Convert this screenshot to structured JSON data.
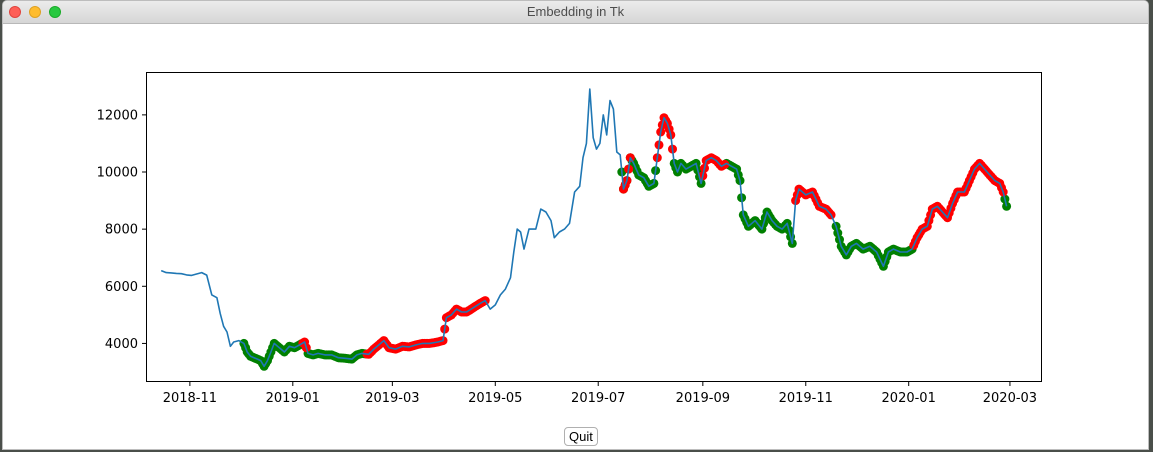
{
  "window": {
    "title": "Embedding in Tk"
  },
  "controls": {
    "quit_label": "Quit"
  },
  "chart_data": {
    "type": "line",
    "title": "",
    "xlabel": "",
    "ylabel": "",
    "xlim": [
      "2018-10-06",
      "2020-03-20"
    ],
    "ylim": [
      2650,
      13500
    ],
    "x_ticks": [
      "2018-11",
      "2019-01",
      "2019-03",
      "2019-05",
      "2019-07",
      "2019-09",
      "2019-11",
      "2020-01",
      "2020-03"
    ],
    "x_tick_dates": [
      "2018-11-01",
      "2019-01-01",
      "2019-03-01",
      "2019-05-01",
      "2019-07-01",
      "2019-09-01",
      "2019-11-01",
      "2020-01-01",
      "2020-03-01"
    ],
    "y_ticks": [
      4000,
      6000,
      8000,
      10000,
      12000
    ],
    "line_color": "#1f77b4",
    "series": [
      {
        "points": [
          [
            "2018-10-15",
            6550
          ],
          [
            "2018-10-18",
            6480
          ],
          [
            "2018-10-21",
            6470
          ],
          [
            "2018-10-24",
            6450
          ],
          [
            "2018-10-27",
            6440
          ],
          [
            "2018-10-30",
            6400
          ],
          [
            "2018-11-02",
            6380
          ],
          [
            "2018-11-05",
            6430
          ],
          [
            "2018-11-08",
            6480
          ],
          [
            "2018-11-11",
            6390
          ],
          [
            "2018-11-14",
            5700
          ],
          [
            "2018-11-17",
            5600
          ],
          [
            "2018-11-19",
            5050
          ],
          [
            "2018-11-21",
            4600
          ],
          [
            "2018-11-23",
            4400
          ],
          [
            "2018-11-25",
            3900
          ],
          [
            "2018-11-27",
            4050
          ],
          [
            "2018-11-30",
            4100
          ],
          [
            "2018-12-03",
            4000
          ],
          [
            "2018-12-05",
            3700
          ],
          [
            "2018-12-07",
            3550
          ],
          [
            "2018-12-09",
            3500
          ],
          [
            "2018-12-11",
            3450
          ],
          [
            "2018-12-13",
            3400
          ],
          [
            "2018-12-15",
            3200
          ],
          [
            "2018-12-17",
            3400
          ],
          [
            "2018-12-19",
            3700
          ],
          [
            "2018-12-21",
            4000
          ],
          [
            "2018-12-23",
            3900
          ],
          [
            "2018-12-25",
            3800
          ],
          [
            "2018-12-27",
            3700
          ],
          [
            "2018-12-30",
            3900
          ],
          [
            "2019-01-02",
            3850
          ],
          [
            "2019-01-05",
            3950
          ],
          [
            "2019-01-08",
            4050
          ],
          [
            "2019-01-10",
            3650
          ],
          [
            "2019-01-13",
            3600
          ],
          [
            "2019-01-16",
            3650
          ],
          [
            "2019-01-20",
            3600
          ],
          [
            "2019-01-24",
            3600
          ],
          [
            "2019-01-28",
            3500
          ],
          [
            "2019-02-01",
            3480
          ],
          [
            "2019-02-05",
            3450
          ],
          [
            "2019-02-08",
            3600
          ],
          [
            "2019-02-11",
            3650
          ],
          [
            "2019-02-15",
            3620
          ],
          [
            "2019-02-18",
            3800
          ],
          [
            "2019-02-21",
            3950
          ],
          [
            "2019-02-24",
            4100
          ],
          [
            "2019-02-27",
            3850
          ],
          [
            "2019-03-03",
            3800
          ],
          [
            "2019-03-07",
            3900
          ],
          [
            "2019-03-11",
            3880
          ],
          [
            "2019-03-15",
            3950
          ],
          [
            "2019-03-19",
            4000
          ],
          [
            "2019-03-23",
            4000
          ],
          [
            "2019-03-28",
            4050
          ],
          [
            "2019-03-31",
            4100
          ],
          [
            "2019-04-02",
            4900
          ],
          [
            "2019-04-05",
            5000
          ],
          [
            "2019-04-08",
            5200
          ],
          [
            "2019-04-11",
            5100
          ],
          [
            "2019-04-14",
            5100
          ],
          [
            "2019-04-18",
            5250
          ],
          [
            "2019-04-22",
            5400
          ],
          [
            "2019-04-25",
            5500
          ],
          [
            "2019-04-28",
            5200
          ],
          [
            "2019-05-01",
            5350
          ],
          [
            "2019-05-04",
            5700
          ],
          [
            "2019-05-07",
            5900
          ],
          [
            "2019-05-10",
            6300
          ],
          [
            "2019-05-12",
            7200
          ],
          [
            "2019-05-14",
            8000
          ],
          [
            "2019-05-16",
            7900
          ],
          [
            "2019-05-18",
            7300
          ],
          [
            "2019-05-21",
            8000
          ],
          [
            "2019-05-25",
            8000
          ],
          [
            "2019-05-28",
            8700
          ],
          [
            "2019-05-31",
            8600
          ],
          [
            "2019-06-03",
            8300
          ],
          [
            "2019-06-05",
            7700
          ],
          [
            "2019-06-08",
            7900
          ],
          [
            "2019-06-11",
            8000
          ],
          [
            "2019-06-14",
            8200
          ],
          [
            "2019-06-17",
            9300
          ],
          [
            "2019-06-20",
            9500
          ],
          [
            "2019-06-22",
            10500
          ],
          [
            "2019-06-24",
            11000
          ],
          [
            "2019-06-26",
            12900
          ],
          [
            "2019-06-28",
            11200
          ],
          [
            "2019-06-30",
            10800
          ],
          [
            "2019-07-02",
            11000
          ],
          [
            "2019-07-04",
            12000
          ],
          [
            "2019-07-06",
            11300
          ],
          [
            "2019-07-08",
            12500
          ],
          [
            "2019-07-10",
            12200
          ],
          [
            "2019-07-12",
            10700
          ],
          [
            "2019-07-14",
            10600
          ],
          [
            "2019-07-16",
            9400
          ],
          [
            "2019-07-18",
            9700
          ],
          [
            "2019-07-20",
            10500
          ],
          [
            "2019-07-22",
            10300
          ],
          [
            "2019-07-25",
            9900
          ],
          [
            "2019-07-28",
            9800
          ],
          [
            "2019-07-31",
            9500
          ],
          [
            "2019-08-03",
            9600
          ],
          [
            "2019-08-05",
            10500
          ],
          [
            "2019-08-07",
            11400
          ],
          [
            "2019-08-09",
            11900
          ],
          [
            "2019-08-11",
            11700
          ],
          [
            "2019-08-13",
            11300
          ],
          [
            "2019-08-15",
            10300
          ],
          [
            "2019-08-17",
            10000
          ],
          [
            "2019-08-19",
            10300
          ],
          [
            "2019-08-22",
            10100
          ],
          [
            "2019-08-25",
            10200
          ],
          [
            "2019-08-28",
            10300
          ],
          [
            "2019-08-31",
            9600
          ],
          [
            "2019-09-03",
            10400
          ],
          [
            "2019-09-06",
            10500
          ],
          [
            "2019-09-09",
            10400
          ],
          [
            "2019-09-12",
            10200
          ],
          [
            "2019-09-15",
            10300
          ],
          [
            "2019-09-18",
            10200
          ],
          [
            "2019-09-21",
            10100
          ],
          [
            "2019-09-23",
            9700
          ],
          [
            "2019-09-25",
            8500
          ],
          [
            "2019-09-28",
            8100
          ],
          [
            "2019-10-02",
            8300
          ],
          [
            "2019-10-06",
            8000
          ],
          [
            "2019-10-09",
            8600
          ],
          [
            "2019-10-12",
            8300
          ],
          [
            "2019-10-15",
            8100
          ],
          [
            "2019-10-18",
            8000
          ],
          [
            "2019-10-21",
            8200
          ],
          [
            "2019-10-24",
            7500
          ],
          [
            "2019-10-26",
            9000
          ],
          [
            "2019-10-28",
            9400
          ],
          [
            "2019-11-01",
            9200
          ],
          [
            "2019-11-05",
            9300
          ],
          [
            "2019-11-09",
            8800
          ],
          [
            "2019-11-13",
            8700
          ],
          [
            "2019-11-16",
            8500
          ],
          [
            "2019-11-19",
            8100
          ],
          [
            "2019-11-22",
            7400
          ],
          [
            "2019-11-25",
            7100
          ],
          [
            "2019-11-28",
            7400
          ],
          [
            "2019-12-01",
            7500
          ],
          [
            "2019-12-05",
            7300
          ],
          [
            "2019-12-09",
            7400
          ],
          [
            "2019-12-13",
            7200
          ],
          [
            "2019-12-17",
            6700
          ],
          [
            "2019-12-20",
            7200
          ],
          [
            "2019-12-23",
            7300
          ],
          [
            "2019-12-27",
            7200
          ],
          [
            "2019-12-31",
            7200
          ],
          [
            "2020-01-03",
            7300
          ],
          [
            "2020-01-06",
            7700
          ],
          [
            "2020-01-09",
            8000
          ],
          [
            "2020-01-12",
            8100
          ],
          [
            "2020-01-15",
            8700
          ],
          [
            "2020-01-18",
            8800
          ],
          [
            "2020-01-21",
            8600
          ],
          [
            "2020-01-24",
            8400
          ],
          [
            "2020-01-27",
            8900
          ],
          [
            "2020-01-30",
            9300
          ],
          [
            "2020-02-03",
            9300
          ],
          [
            "2020-02-06",
            9700
          ],
          [
            "2020-02-09",
            10100
          ],
          [
            "2020-02-12",
            10300
          ],
          [
            "2020-02-15",
            10100
          ],
          [
            "2020-02-18",
            9900
          ],
          [
            "2020-02-21",
            9700
          ],
          [
            "2020-02-24",
            9600
          ],
          [
            "2020-02-26",
            9300
          ],
          [
            "2020-02-28",
            8800
          ]
        ]
      }
    ],
    "marker_groups": [
      {
        "color": "#008000",
        "ranges": [
          [
            "2018-12-03",
            "2019-01-06"
          ],
          [
            "2019-01-10",
            "2019-02-13"
          ],
          [
            "2019-07-15",
            "2019-08-04"
          ],
          [
            "2019-08-15",
            "2019-08-31"
          ],
          [
            "2019-09-15",
            "2019-10-24"
          ],
          [
            "2019-11-19",
            "2020-01-03"
          ],
          [
            "2020-02-27",
            "2020-02-28"
          ]
        ]
      },
      {
        "color": "#ff0000",
        "ranges": [
          [
            "2019-01-07",
            "2019-01-09"
          ],
          [
            "2019-02-14",
            "2019-03-31"
          ],
          [
            "2019-04-01",
            "2019-04-25"
          ],
          [
            "2019-07-16",
            "2019-07-20"
          ],
          [
            "2019-08-05",
            "2019-08-14"
          ],
          [
            "2019-09-01",
            "2019-09-14"
          ],
          [
            "2019-10-26",
            "2019-11-16"
          ],
          [
            "2020-01-04",
            "2020-02-26"
          ]
        ]
      }
    ]
  }
}
